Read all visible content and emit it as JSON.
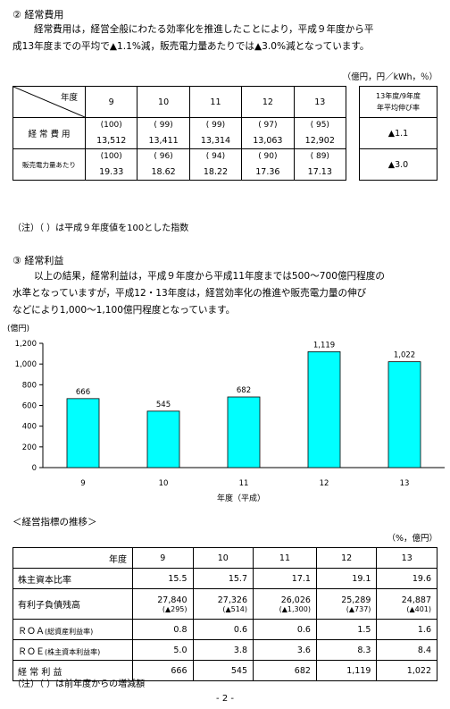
{
  "section2": {
    "heading": "② 経常費用",
    "para_line1": "経常費用は，経営全般にわたる効率化を推進したことにより，平成９年度から平",
    "para_line2": "成13年度までの平均で▲1.1%減，販売電力量あたりでは▲3.0%減となっています。",
    "unit": "（億円，円／kWh，％）",
    "table": {
      "header_label": "年度",
      "years": [
        "9",
        "10",
        "11",
        "12",
        "13"
      ],
      "avg_header_line1": "13年度/9年度",
      "avg_header_line2": "年平均伸び率",
      "rows": [
        {
          "label": "経 常 費 用",
          "index": [
            "(100)",
            "( 99)",
            "( 99)",
            "( 97)",
            "( 95)"
          ],
          "values": [
            "13,512",
            "13,411",
            "13,314",
            "13,063",
            "12,902"
          ],
          "avg": "▲1.1"
        },
        {
          "label": "販売電力量あたり",
          "index": [
            "(100)",
            "( 96)",
            "( 94)",
            "( 90)",
            "( 89)"
          ],
          "values": [
            "19.33",
            "18.62",
            "18.22",
            "17.36",
            "17.13"
          ],
          "avg": "▲3.0"
        }
      ]
    },
    "note": "（注）（ ）は平成９年度値を100とした指数"
  },
  "section3": {
    "heading": "③ 経常利益",
    "para_line1": "以上の結果，経常利益は，平成９年度から平成11年度までは500～700億円程度の",
    "para_line2": "水準となっていますが，平成12・13年度は，経営効率化の推進や販売電力量の伸び",
    "para_line3": "などにより1,000～1,100億円程度となっています。"
  },
  "chart_data": {
    "type": "bar",
    "unit_label": "(億円)",
    "categories": [
      "9",
      "10",
      "11",
      "12",
      "13"
    ],
    "values": [
      666,
      545,
      682,
      1119,
      1022
    ],
    "value_labels": [
      "666",
      "545",
      "682",
      "1,119",
      "1,022"
    ],
    "yticks": [
      "0",
      "200",
      "400",
      "600",
      "800",
      "1,000",
      "1,200"
    ],
    "ylim": [
      0,
      1200
    ],
    "xlabel": "年度（平成）",
    "bar_color": "#00ffff",
    "grid": false
  },
  "indicators": {
    "title": "＜経営指標の推移＞",
    "unit": "（%，億円）",
    "header_label": "年度",
    "years": [
      "9",
      "10",
      "11",
      "12",
      "13"
    ],
    "rows": [
      {
        "label": "株主資本比率",
        "values": [
          "15.5",
          "15.7",
          "17.1",
          "19.1",
          "19.6"
        ]
      },
      {
        "label": "有利子負債残高",
        "values": [
          "27,840",
          "27,326",
          "26,026",
          "25,289",
          "24,887"
        ],
        "sub": [
          "(▲295)",
          "(▲514)",
          "(▲1,300)",
          "(▲737)",
          "(▲401)"
        ]
      },
      {
        "label": "ＲＯＡ",
        "label_sub": "(総資産利益率)",
        "values": [
          "0.8",
          "0.6",
          "0.6",
          "1.5",
          "1.6"
        ]
      },
      {
        "label": "ＲＯＥ",
        "label_sub": "(株主資本利益率)",
        "values": [
          "5.0",
          "3.8",
          "3.6",
          "8.3",
          "8.4"
        ]
      },
      {
        "label": "経 常 利 益",
        "values": [
          "666",
          "545",
          "682",
          "1,119",
          "1,022"
        ]
      }
    ],
    "note": "（注）（ ）は前年度からの増減額"
  },
  "page_number": "- 2 -"
}
